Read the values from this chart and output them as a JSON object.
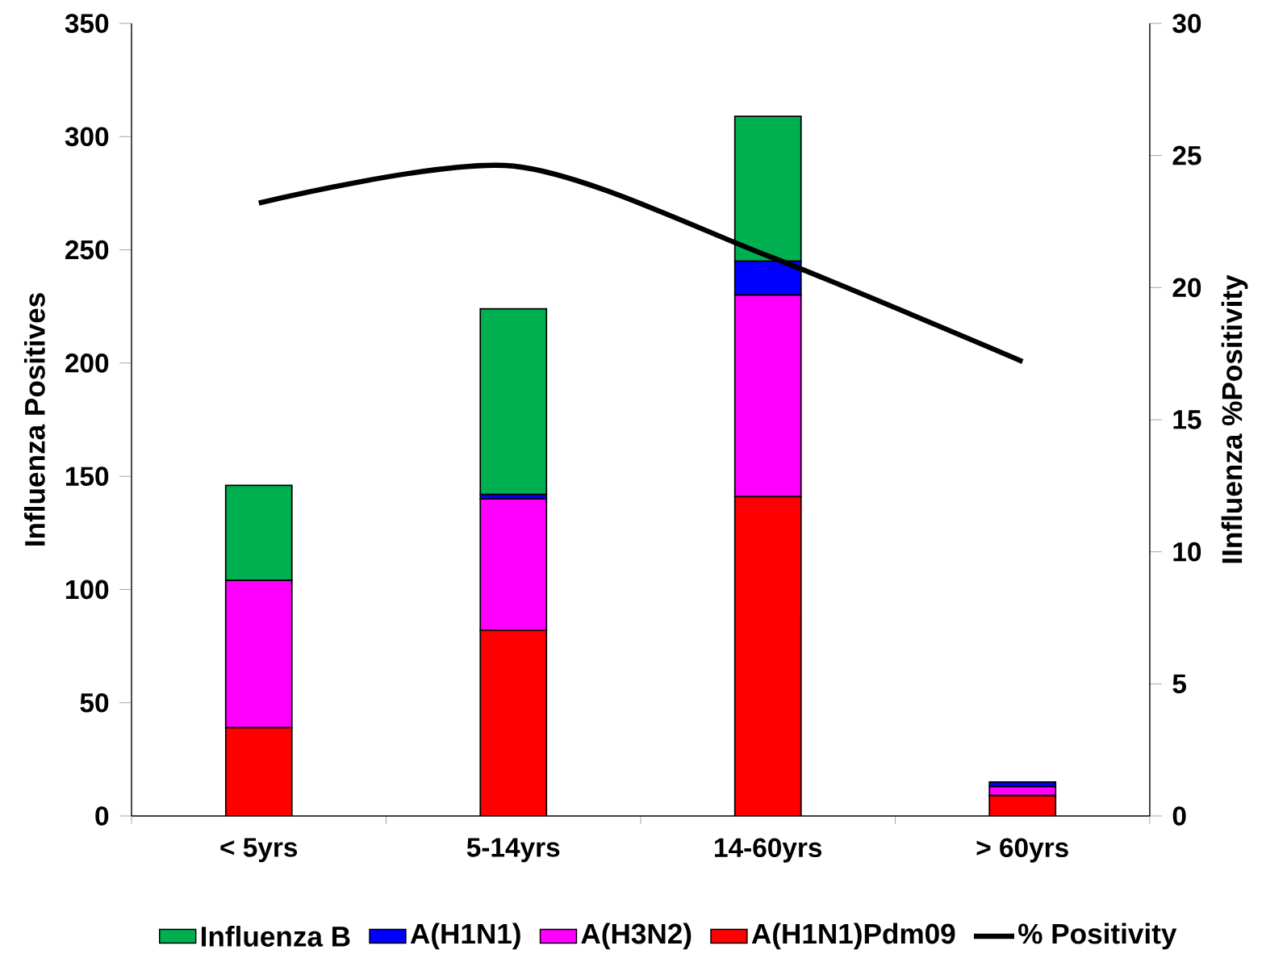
{
  "chart_data": {
    "type": "bar",
    "stacked": true,
    "categories": [
      "< 5yrs",
      "5-14yrs",
      "14-60yrs",
      "> 60yrs"
    ],
    "series": [
      {
        "name": "A(H1N1)Pdm09",
        "color": "#ff0000",
        "values": [
          39,
          82,
          141,
          9
        ]
      },
      {
        "name": "A(H3N2)",
        "color": "#ff00ff",
        "values": [
          65,
          58,
          89,
          4
        ]
      },
      {
        "name": "A(H1N1)",
        "color": "#0000ff",
        "values": [
          0,
          2,
          15,
          2
        ]
      },
      {
        "name": "Influenza B",
        "color": "#00b050",
        "values": [
          42,
          82,
          64,
          0
        ]
      },
      {
        "name": "% Positivity",
        "type": "line",
        "axis": "y2",
        "color": "#000000",
        "values": [
          23.2,
          24.6,
          21.2,
          17.2
        ]
      }
    ],
    "ylabel": "Influenza Positives",
    "y2label": "IInfluenza %Positivity",
    "ylim": [
      0,
      350
    ],
    "yticks": [
      0,
      50,
      100,
      150,
      200,
      250,
      300,
      350
    ],
    "y2lim": [
      0,
      30
    ],
    "y2ticks": [
      0,
      5,
      10,
      15,
      20,
      25,
      30
    ],
    "legend": "bottom"
  }
}
